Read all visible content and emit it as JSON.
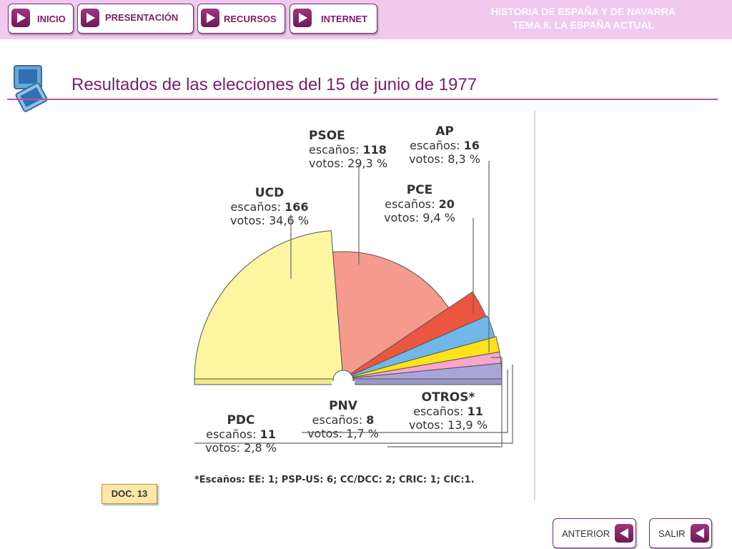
{
  "nav": {
    "items": [
      {
        "label": "INICIO"
      },
      {
        "label": "PRESENTACIÓN"
      },
      {
        "label": "RECURSOS"
      },
      {
        "label": "INTERNET"
      }
    ],
    "course_line1": "HISTORIA DE ESPAÑA Y DE NAVARRA",
    "course_line2": "TEMA 8. LA ESPAÑA ACTUAL"
  },
  "page": {
    "title": "Resultados de las elecciones del 15 de junio de 1977",
    "doc_label": "DOC. 13"
  },
  "footer": {
    "prev_label": "ANTERIOR",
    "exit_label": "SALIR"
  },
  "colors": {
    "accent": "#7a1e6e",
    "topbar": "#f1c9ef"
  },
  "chart_data": {
    "type": "pie",
    "variant": "hemicycle",
    "seat_label": "escaños:",
    "vote_label": "votos:",
    "parties": [
      {
        "name": "UCD",
        "seats": 166,
        "seats_text": "166",
        "votes": 34.6,
        "votes_text": "34,6 %",
        "color": "#fdf6a0"
      },
      {
        "name": "PSOE",
        "seats": 118,
        "seats_text": "118",
        "votes": 29.3,
        "votes_text": "29,3 %",
        "color": "#f59a8c"
      },
      {
        "name": "PCE",
        "seats": 20,
        "seats_text": "20",
        "votes": 9.4,
        "votes_text": "9,4 %",
        "color": "#ec5640"
      },
      {
        "name": "AP",
        "seats": 16,
        "seats_text": "16",
        "votes": 8.3,
        "votes_text": "8,3 %",
        "color": "#6fb8e8"
      },
      {
        "name": "PDC",
        "seats": 11,
        "seats_text": "11",
        "votes": 2.8,
        "votes_text": "2,8 %",
        "color": "#ffe21a"
      },
      {
        "name": "PNV",
        "seats": 8,
        "seats_text": "8",
        "votes": 1.7,
        "votes_text": "1,7 %",
        "color": "#f8a6cc"
      },
      {
        "name": "OTROS*",
        "seats": 11,
        "seats_text": "11",
        "votes": 13.9,
        "votes_text": "13,9 %",
        "color": "#a9a5d8"
      }
    ],
    "footnote": "*Escaños: EE: 1; PSP-US: 6; CC/DCC: 2; CRIC: 1; CIC:1."
  }
}
